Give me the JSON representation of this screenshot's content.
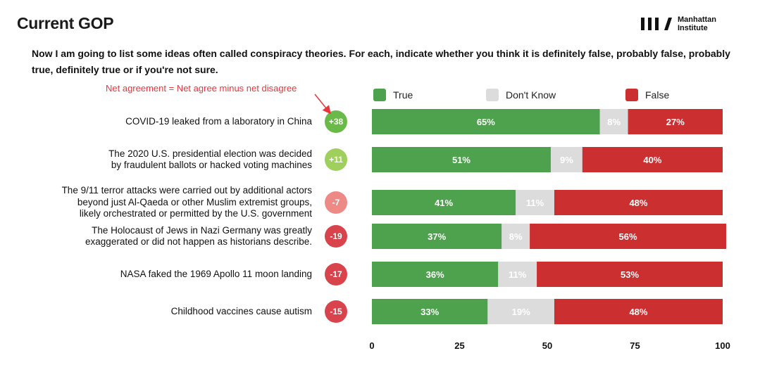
{
  "header": {
    "title": "Current GOP",
    "question": "Now I am going to list some ideas often called conspiracy theories.  For each, indicate whether you think it is definitely false,  probably false, probably true, definitely true or if you're not sure.",
    "logo_line1": "Manhattan",
    "logo_line2": "Institute"
  },
  "annotation": {
    "net_note": "Net agreement = Net agree minus net disagree",
    "color": "#e8363b"
  },
  "chart_data": {
    "type": "bar",
    "stacked": true,
    "orientation": "horizontal",
    "categories": [
      "COVID-19 leaked from a laboratory in China",
      "The 2020 U.S. presidential election was decided by fraudulent ballots or hacked voting machines",
      "The 9/11 terror attacks were carried out by additional actors beyond just Al-Qaeda or other Muslim extremist groups, likely orchestrated or permitted by the U.S. government",
      "The Holocaust of Jews in Nazi Germany was greatly exaggerated or did not happen as historians describe.",
      "NASA faked the 1969 Apollo 11 moon landing",
      "Childhood vaccines cause autism"
    ],
    "category_lines": [
      [
        "COVID-19 leaked from a laboratory in China"
      ],
      [
        "The 2020 U.S. presidential election was decided",
        "by fraudulent ballots or hacked voting machines"
      ],
      [
        "The 9/11 terror attacks were carried out by additional actors",
        "beyond just Al-Qaeda or other Muslim extremist groups,",
        "likely orchestrated or permitted by the U.S. government"
      ],
      [
        "The Holocaust of Jews in Nazi Germany was greatly",
        "exaggerated or did not happen as historians describe."
      ],
      [
        "NASA faked the 1969 Apollo 11 moon landing"
      ],
      [
        "Childhood vaccines cause autism"
      ]
    ],
    "series": [
      {
        "name": "True",
        "color": "#4ea24e",
        "values": [
          65,
          51,
          41,
          37,
          36,
          33
        ],
        "labels": [
          "65%",
          "51%",
          "41%",
          "37%",
          "36%",
          "33%"
        ]
      },
      {
        "name": "Don't Know",
        "color": "#dcdcdc",
        "values": [
          8,
          9,
          11,
          8,
          11,
          19
        ],
        "labels": [
          "8%",
          "9%",
          "11%",
          "8%",
          "11%",
          "19%"
        ]
      },
      {
        "name": "False",
        "color": "#cc2f2f",
        "values": [
          27,
          40,
          48,
          56,
          53,
          48
        ],
        "labels": [
          "27%",
          "40%",
          "48%",
          "56%",
          "53%",
          "48%"
        ]
      }
    ],
    "net_agreement": [
      {
        "label": "+38",
        "color": "#6aba49"
      },
      {
        "label": "+11",
        "color": "#9fcf5c"
      },
      {
        "label": "-7",
        "color": "#ee8a86"
      },
      {
        "label": "-19",
        "color": "#d9434c"
      },
      {
        "label": "-17",
        "color": "#d9434c"
      },
      {
        "label": "-15",
        "color": "#d9434c"
      }
    ],
    "xlim": [
      0,
      100
    ],
    "xticks": [
      "0",
      "25",
      "50",
      "75",
      "100"
    ],
    "grid": false,
    "legend_position": "top"
  }
}
